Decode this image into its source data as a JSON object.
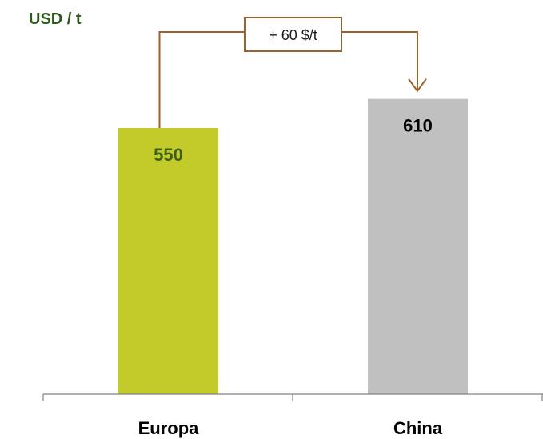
{
  "chart_data": {
    "type": "bar",
    "unit_label": "USD / t",
    "categories": [
      "Europa",
      "China"
    ],
    "values": [
      550,
      610
    ],
    "value_labels": [
      "550",
      "610"
    ],
    "bar_colors": [
      "#c3cb2b",
      "#c0c0c0"
    ],
    "value_label_colors": [
      "#3e5f17",
      "#000000"
    ],
    "difference": {
      "label": "+ 60 $/t",
      "from": "Europa",
      "to": "China",
      "color": "#9b622a"
    },
    "axis": {
      "y_visible": false,
      "grid": false
    },
    "unit_color": "#2e5a1c"
  }
}
